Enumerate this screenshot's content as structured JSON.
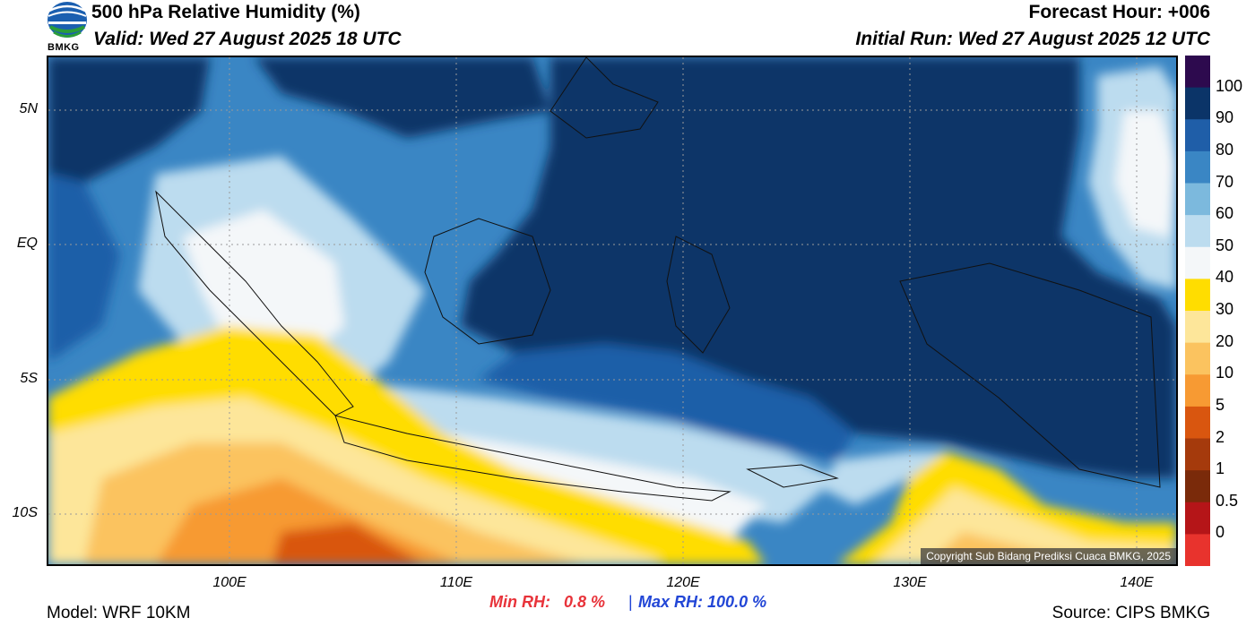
{
  "header": {
    "title": "500 hPa Relative Humidity (%)",
    "valid": "Valid: Wed 27 August 2025 18 UTC",
    "forecast_hour": "Forecast Hour: +006",
    "initial_run": "Initial Run: Wed 27 August 2025 12 UTC"
  },
  "logo": {
    "text": "BMKG"
  },
  "map": {
    "lat_labels": [
      "5N",
      "EQ",
      "5S",
      "10S"
    ],
    "lon_labels": [
      "100E",
      "110E",
      "120E",
      "130E",
      "140E"
    ],
    "copyright": "Copyright Sub Bidang Prediksi Cuaca BMKG, 2025"
  },
  "colorbar": {
    "labels": [
      "100",
      "90",
      "80",
      "70",
      "60",
      "50",
      "40",
      "30",
      "20",
      "10",
      "5",
      "2",
      "1",
      "0.5",
      "0"
    ],
    "colors": [
      "#2d0a4e",
      "#0b3468",
      "#1f5ea8",
      "#3a86c4",
      "#7cb9dd",
      "#bcdcef",
      "#f4f7f9",
      "#ffdd00",
      "#fde69a",
      "#fbc35f",
      "#f79a33",
      "#d9560f",
      "#a53a0c",
      "#7a2a0a",
      "#b51518",
      "#e8332d"
    ]
  },
  "stats": {
    "min_label": "Min RH:",
    "min_value": "0.8 %",
    "separator": "|",
    "max_label": "Max RH:",
    "max_value": "100.0 %",
    "min_color": "#e8333a",
    "max_color": "#2246d6"
  },
  "footer": {
    "model": "Model: WRF 10KM",
    "source": "Source: CIPS BMKG"
  }
}
